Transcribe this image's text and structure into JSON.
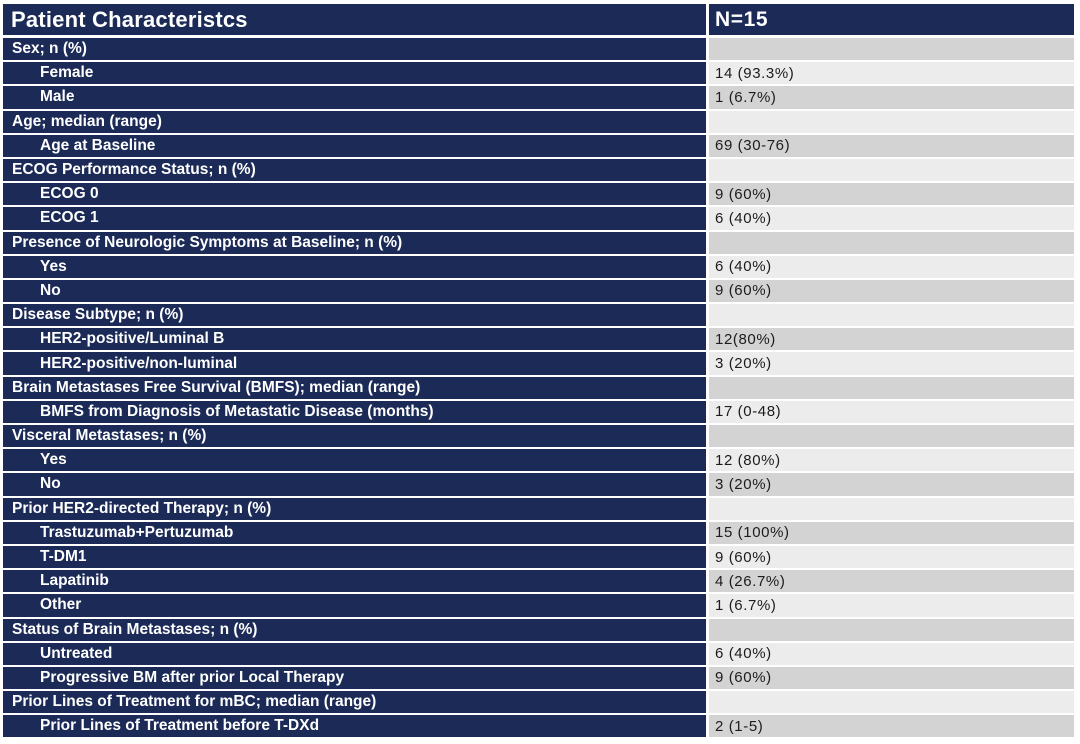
{
  "colors": {
    "navy": "#1b2a57",
    "row_dark_gray": "#d3d3d3",
    "row_light_gray": "#ececec",
    "header_text": "#ffffff",
    "value_text": "#1c1c1c",
    "background": "#ffffff"
  },
  "chart_data": {
    "type": "table",
    "title": "Patient Characteristcs",
    "columns": [
      "Patient Characteristcs",
      "N=15"
    ],
    "rows": [
      {
        "type": "section",
        "label": "Sex; n (%)",
        "value": ""
      },
      {
        "type": "data",
        "label": "Female",
        "value": "14 (93.3%)"
      },
      {
        "type": "data",
        "label": "Male",
        "value": "1 (6.7%)"
      },
      {
        "type": "section",
        "label": "Age; median (range)",
        "value": ""
      },
      {
        "type": "data",
        "label": "Age at Baseline",
        "value": "69 (30-76)"
      },
      {
        "type": "section",
        "label": "ECOG Performance Status; n (%)",
        "value": ""
      },
      {
        "type": "data",
        "label": "ECOG 0",
        "value": "9 (60%)"
      },
      {
        "type": "data",
        "label": "ECOG 1",
        "value": "6 (40%)"
      },
      {
        "type": "section",
        "label": "Presence of Neurologic Symptoms at Baseline; n (%)",
        "value": ""
      },
      {
        "type": "data",
        "label": "Yes",
        "value": "6 (40%)"
      },
      {
        "type": "data",
        "label": "No",
        "value": "9 (60%)"
      },
      {
        "type": "section",
        "label": "Disease Subtype; n (%)",
        "value": ""
      },
      {
        "type": "data",
        "label": "HER2-positive/Luminal B",
        "value": "12(80%)"
      },
      {
        "type": "data",
        "label": "HER2-positive/non-luminal",
        "value": "3 (20%)"
      },
      {
        "type": "section",
        "label": "Brain Metastases Free Survival (BMFS); median (range)",
        "value": ""
      },
      {
        "type": "data",
        "label": "BMFS from Diagnosis of Metastatic Disease (months)",
        "value": "17 (0-48)"
      },
      {
        "type": "section",
        "label": "Visceral Metastases; n (%)",
        "value": ""
      },
      {
        "type": "data",
        "label": "Yes",
        "value": "12 (80%)"
      },
      {
        "type": "data",
        "label": "No",
        "value": "3 (20%)"
      },
      {
        "type": "section",
        "label": "Prior HER2-directed Therapy; n (%)",
        "value": ""
      },
      {
        "type": "data",
        "label": "Trastuzumab+Pertuzumab",
        "value": "15 (100%)"
      },
      {
        "type": "data",
        "label": "T-DM1",
        "value": "9 (60%)"
      },
      {
        "type": "data",
        "label": "Lapatinib",
        "value": "4 (26.7%)"
      },
      {
        "type": "data",
        "label": "Other",
        "value": "1 (6.7%)"
      },
      {
        "type": "section",
        "label": "Status of Brain Metastases; n (%)",
        "value": ""
      },
      {
        "type": "data",
        "label": "Untreated",
        "value": "6 (40%)"
      },
      {
        "type": "data",
        "label": "Progressive BM after prior Local Therapy",
        "value": "9 (60%)"
      },
      {
        "type": "section",
        "label": "Prior Lines of Treatment for mBC; median (range)",
        "value": ""
      },
      {
        "type": "data",
        "label": "Prior Lines of Treatment before T-DXd",
        "value": "2 (1-5)"
      }
    ]
  }
}
